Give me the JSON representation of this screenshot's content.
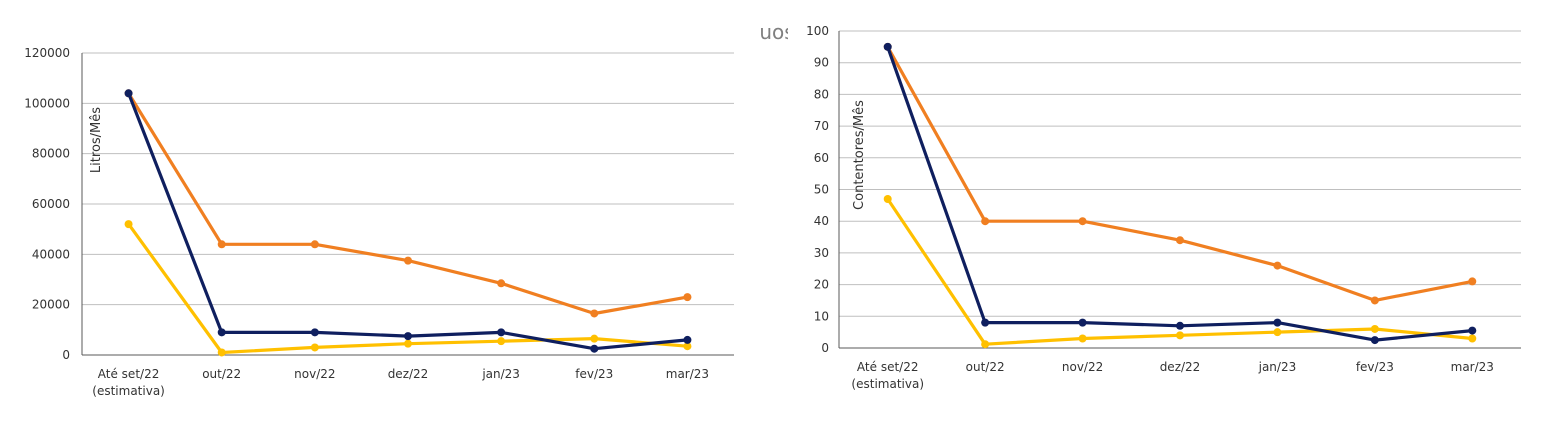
{
  "title": "Gestão dos resíduos",
  "colors": {
    "blue": "#0f1f5f",
    "orange": "#f07f21",
    "yellow": "#ffc000",
    "grid": "#bfbfbf",
    "axis": "#595959"
  },
  "chart_data": [
    {
      "type": "line",
      "ylabel": "Litros/Mês",
      "xlabel": "",
      "categories": [
        "Até set/22 (estimativa)",
        "out/22",
        "nov/22",
        "dez/22",
        "jan/23",
        "fev/23",
        "mar/23"
      ],
      "ylim": [
        0,
        120000
      ],
      "yticks": [
        0,
        20000,
        40000,
        60000,
        80000,
        100000,
        120000
      ],
      "grid": true,
      "series": [
        {
          "color": "blue",
          "values": [
            104000,
            9000,
            9000,
            7500,
            9000,
            2500,
            6000
          ]
        },
        {
          "color": "orange",
          "values": [
            104000,
            44000,
            44000,
            37500,
            28500,
            16500,
            23000
          ]
        },
        {
          "color": "yellow",
          "values": [
            52000,
            1000,
            3000,
            4500,
            5500,
            6500,
            3500
          ]
        }
      ]
    },
    {
      "type": "line",
      "ylabel": "Contentores/Mês",
      "xlabel": "",
      "categories": [
        "Até set/22 (estimativa)",
        "out/22",
        "nov/22",
        "dez/22",
        "jan/23",
        "fev/23",
        "mar/23"
      ],
      "ylim": [
        0,
        100
      ],
      "yticks": [
        0,
        10,
        20,
        30,
        40,
        50,
        60,
        70,
        80,
        90,
        100
      ],
      "grid": true,
      "series": [
        {
          "color": "blue",
          "values": [
            95,
            8,
            8,
            7,
            8,
            2.5,
            5.5
          ]
        },
        {
          "color": "orange",
          "values": [
            95,
            40,
            40,
            34,
            26,
            15,
            21
          ]
        },
        {
          "color": "yellow",
          "values": [
            47,
            1.2,
            3,
            4,
            5,
            6,
            3
          ]
        }
      ]
    }
  ]
}
